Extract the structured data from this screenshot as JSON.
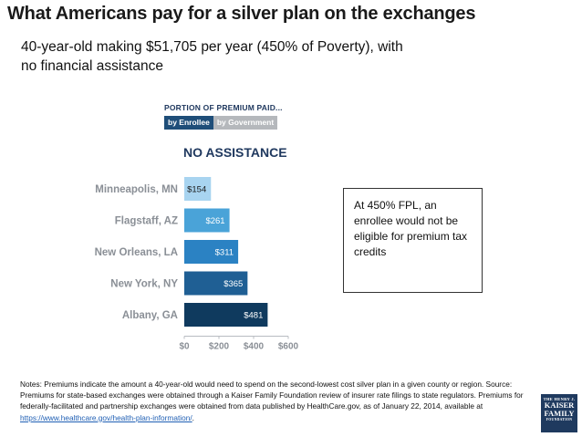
{
  "header": {
    "title": "What Americans pay for a silver plan on the exchanges",
    "subtitle": "40-year-old making $51,705 per year (450% of Poverty), with no financial assistance"
  },
  "legend": {
    "title": "PORTION OF PREMIUM PAID...",
    "enrollee_label": "by Enrollee",
    "government_label": "by Government",
    "enrollee_color": "#1f4e79",
    "government_color": "#b5b8bc"
  },
  "callout": {
    "text": "At 450% FPL, an enrollee would not be eligible for premium tax credits"
  },
  "notes": {
    "text": "Notes: Premiums indicate the amount a 40-year-old would need to spend on the second-lowest cost silver plan in a given county or region. Source: Premiums for state-based exchanges were obtained through a Kaiser Family Foundation review of insurer rate filings to state regulators. Premiums for federally-facilitated and partnership exchanges were obtained from data published by HealthCare.gov, as of January 22, 2014, available at ",
    "link": "https://www.healthcare.gov/health-plan-information/",
    "suffix": "."
  },
  "logo": {
    "line1": "THE HENRY J.",
    "line2": "KAISER",
    "line3": "FAMILY",
    "line4": "FOUNDATION"
  },
  "chart_data": {
    "type": "bar",
    "orientation": "horizontal",
    "title": "NO ASSISTANCE",
    "categories": [
      "Minneapolis, MN",
      "Flagstaff, AZ",
      "New Orleans, LA",
      "New York, NY",
      "Albany, GA"
    ],
    "values": [
      154,
      261,
      311,
      365,
      481
    ],
    "labels": [
      "$154",
      "$261",
      "$311",
      "$365",
      "$481"
    ],
    "bar_colors": [
      "#a8d4f0",
      "#4aa3d8",
      "#2b82c3",
      "#1f5f94",
      "#0f3a5e"
    ],
    "label_colors": [
      "#1a1a1a",
      "#ffffff",
      "#ffffff",
      "#ffffff",
      "#ffffff"
    ],
    "xticks": [
      0,
      200,
      400,
      600
    ],
    "xtick_labels": [
      "$0",
      "$200",
      "$400",
      "$600"
    ],
    "xlim": [
      0,
      600
    ],
    "grid": false
  }
}
